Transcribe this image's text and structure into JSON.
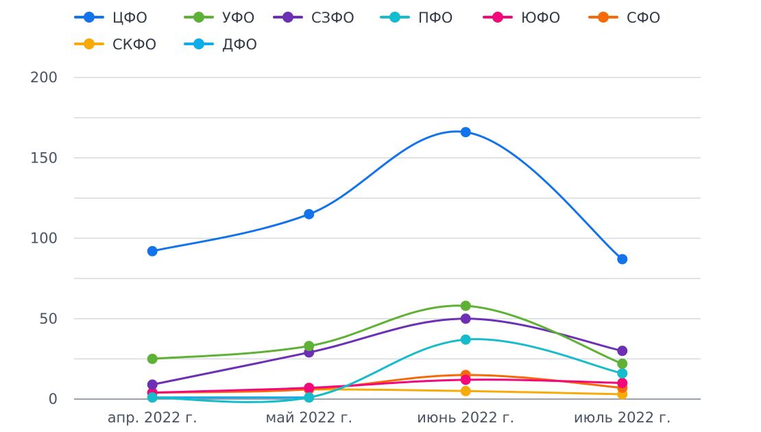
{
  "chart_data": {
    "type": "line",
    "categories": [
      "апр. 2022 г.",
      "май 2022 г.",
      "июнь 2022 г.",
      "июль 2022 г."
    ],
    "ylim": [
      0,
      200
    ],
    "yticks": [
      0,
      50,
      100,
      150,
      200
    ],
    "grid": true,
    "legend_position": "top-left",
    "series": [
      {
        "name": "ЦФО",
        "color": "#1273eb",
        "values": [
          92,
          115,
          166,
          87
        ]
      },
      {
        "name": "УФО",
        "color": "#5eb135",
        "values": [
          25,
          33,
          58,
          22
        ]
      },
      {
        "name": "СЗФО",
        "color": "#6d2fb4",
        "values": [
          9,
          29,
          50,
          30
        ]
      },
      {
        "name": "ПФО",
        "color": "#17bccc",
        "values": [
          1,
          1,
          37,
          16
        ]
      },
      {
        "name": "ЮФО",
        "color": "#f2097a",
        "values": [
          4,
          7,
          12,
          10
        ]
      },
      {
        "name": "СФО",
        "color": "#f56b0a",
        "values": [
          4,
          6,
          15,
          7
        ]
      },
      {
        "name": "СКФО",
        "color": "#f7ab0a",
        "values": [
          4,
          6,
          5,
          3
        ]
      },
      {
        "name": "ДФО",
        "color": "#12acea",
        "values": [
          1,
          1,
          null,
          null
        ]
      }
    ]
  }
}
